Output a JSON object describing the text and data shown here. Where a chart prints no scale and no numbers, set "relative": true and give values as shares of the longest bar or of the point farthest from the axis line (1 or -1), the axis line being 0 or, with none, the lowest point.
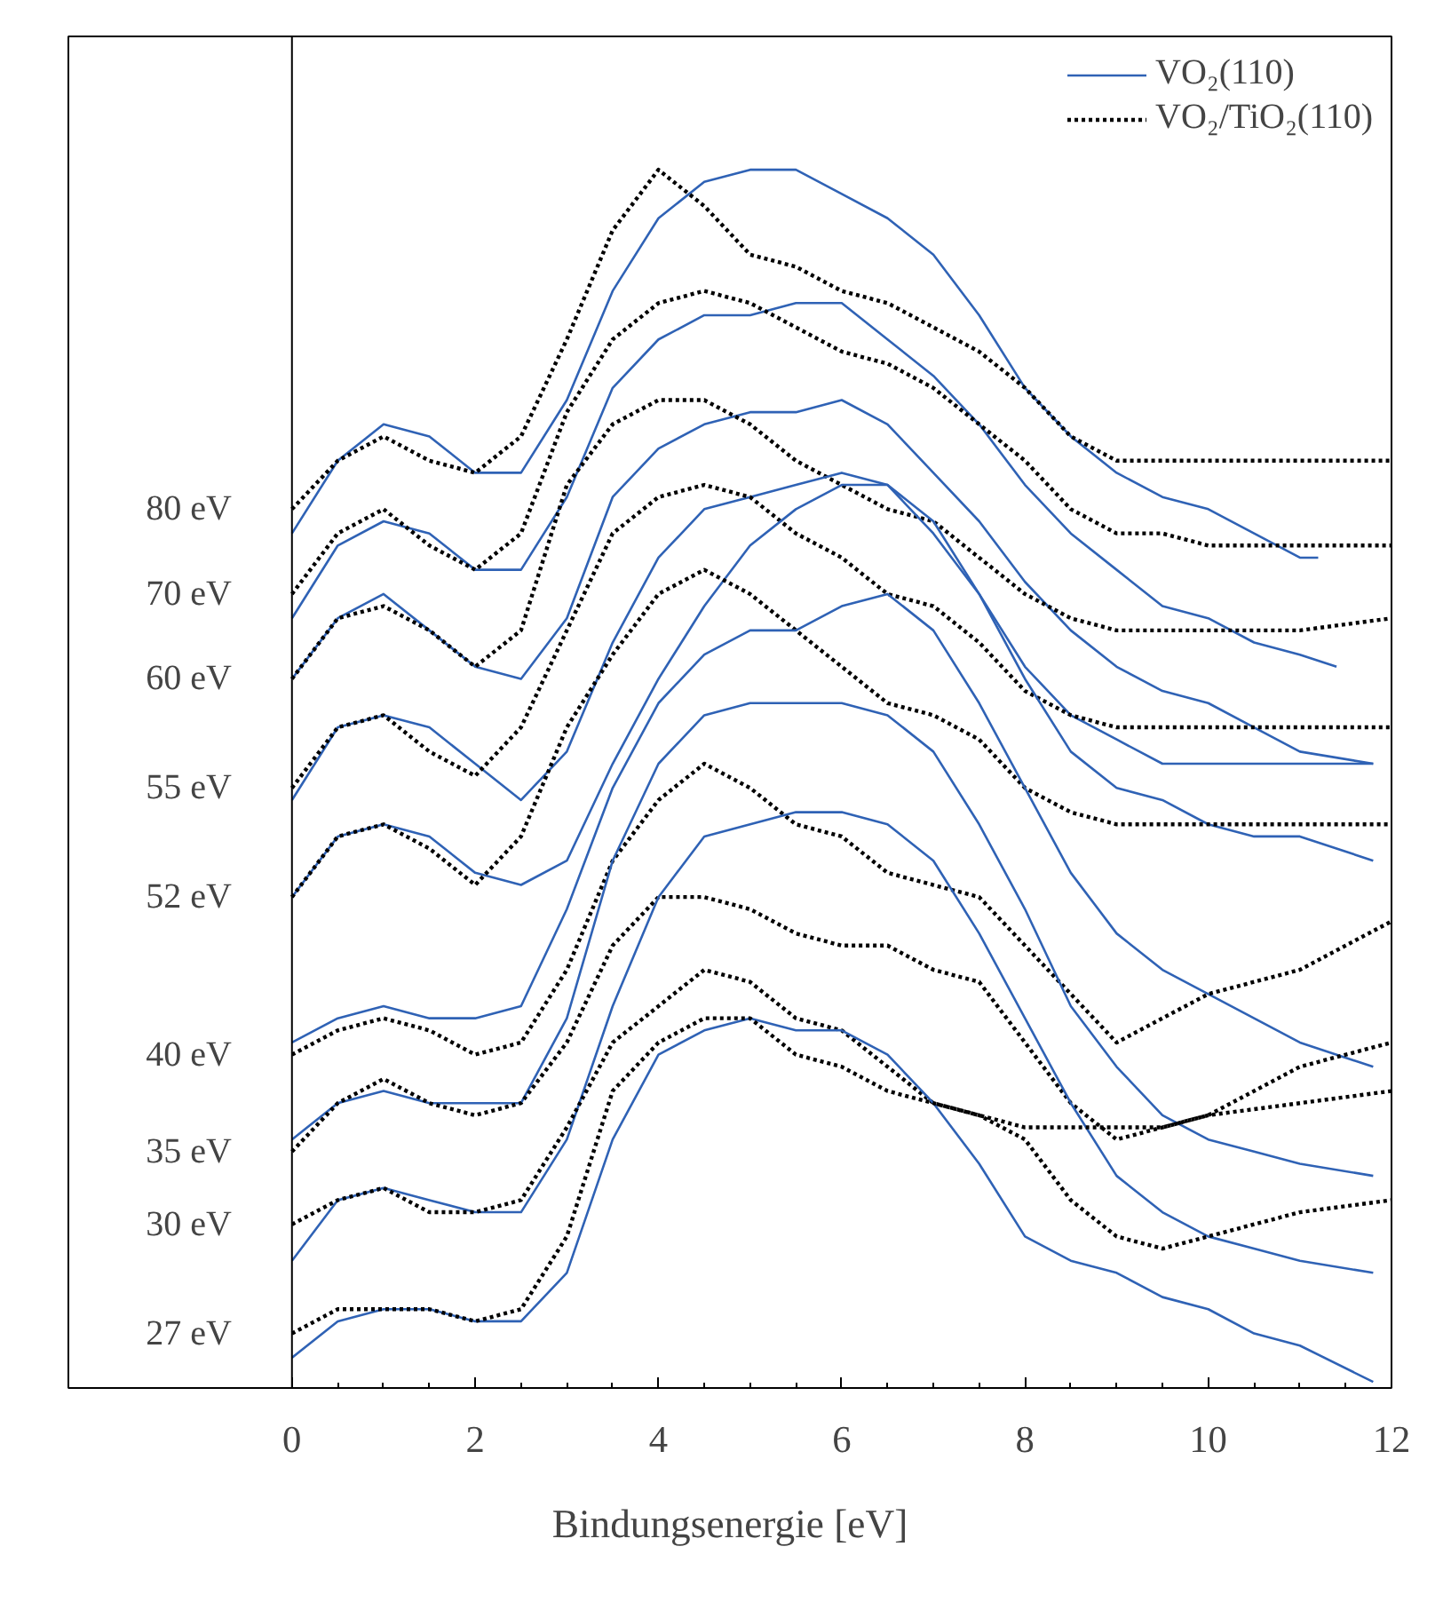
{
  "chart_data": {
    "type": "line",
    "relative": true,
    "xlabel": "Bindungsenergie [eV]",
    "xlim": [
      -2.44,
      12
    ],
    "xticks": [
      0,
      2,
      4,
      6,
      8,
      10,
      12
    ],
    "grid": false,
    "ref_lines": [
      {
        "axis": "x",
        "value": 0
      }
    ],
    "legend": "top right",
    "marker": "none",
    "annotations": [
      "80 eV",
      "70 eV",
      "60 eV",
      "55 eV",
      "52 eV",
      "40 eV",
      "35 eV",
      "30 eV",
      "27 eV"
    ],
    "series": [
      {
        "name": "VO₂(110)",
        "color": "#2f62b5",
        "line_style": "solid",
        "x": [
          0,
          0.5,
          1,
          1.5,
          2,
          2.5,
          3,
          3.5,
          4,
          4.5,
          5,
          5.5,
          6,
          6.5,
          7,
          7.5,
          8,
          8.5,
          9,
          9.5,
          10,
          10.5,
          11,
          11.2
        ],
        "values": [
          0.7,
          0.76,
          0.79,
          0.78,
          0.75,
          0.75,
          0.81,
          0.9,
          0.96,
          0.99,
          1.0,
          1.0,
          0.98,
          0.96,
          0.93,
          0.88,
          0.82,
          0.78,
          0.75,
          0.73,
          0.72,
          0.7,
          0.68,
          0.68
        ]
      },
      {
        "name": "VO₂/TiO₂(110)",
        "color": "#000000",
        "line_style": "dotted",
        "x": [
          0,
          0.5,
          1,
          1.5,
          2,
          2.5,
          3,
          3.5,
          4,
          4.5,
          5,
          5.5,
          6,
          6.5,
          7,
          7.5,
          8,
          8.5,
          9,
          9.5,
          10,
          11,
          12
        ],
        "values": [
          0.72,
          0.76,
          0.78,
          0.76,
          0.75,
          0.78,
          0.86,
          0.95,
          1.0,
          0.97,
          0.93,
          0.92,
          0.9,
          0.89,
          0.87,
          0.85,
          0.82,
          0.78,
          0.76,
          0.76,
          0.76,
          0.76,
          0.76
        ]
      },
      {
        "color": "#2f62b5",
        "line_style": "solid",
        "x": [
          0,
          0.5,
          1,
          1.5,
          2,
          2.5,
          3,
          3.5,
          4,
          4.5,
          5,
          5.5,
          6,
          6.5,
          7,
          7.5,
          8,
          8.5,
          9,
          9.5,
          10,
          10.5,
          11,
          11.4
        ],
        "values": [
          0.63,
          0.69,
          0.71,
          0.7,
          0.67,
          0.67,
          0.73,
          0.82,
          0.86,
          0.88,
          0.88,
          0.89,
          0.89,
          0.86,
          0.83,
          0.79,
          0.74,
          0.7,
          0.67,
          0.64,
          0.63,
          0.61,
          0.6,
          0.59
        ]
      },
      {
        "color": "#000000",
        "line_style": "dotted",
        "x": [
          0,
          0.5,
          1,
          1.5,
          2,
          2.5,
          3,
          3.5,
          4,
          4.5,
          5,
          5.5,
          6,
          6.5,
          7,
          7.5,
          8,
          8.5,
          9,
          9.5,
          10,
          11,
          12
        ],
        "values": [
          0.65,
          0.7,
          0.72,
          0.69,
          0.67,
          0.7,
          0.8,
          0.86,
          0.89,
          0.9,
          0.89,
          0.87,
          0.85,
          0.84,
          0.82,
          0.79,
          0.76,
          0.72,
          0.7,
          0.7,
          0.69,
          0.69,
          0.69
        ]
      },
      {
        "color": "#2f62b5",
        "line_style": "solid",
        "x": [
          0,
          0.5,
          1,
          1.5,
          2,
          2.5,
          3,
          3.5,
          4,
          4.5,
          5,
          5.5,
          6,
          6.5,
          7,
          7.5,
          8,
          8.5,
          9,
          9.5,
          10,
          10.5,
          11,
          11.8
        ],
        "values": [
          0.58,
          0.63,
          0.65,
          0.62,
          0.59,
          0.58,
          0.63,
          0.73,
          0.77,
          0.79,
          0.8,
          0.8,
          0.81,
          0.79,
          0.75,
          0.71,
          0.66,
          0.62,
          0.59,
          0.57,
          0.56,
          0.54,
          0.52,
          0.51
        ]
      },
      {
        "color": "#000000",
        "line_style": "dotted",
        "x": [
          0,
          0.5,
          1,
          1.5,
          2,
          2.5,
          3,
          3.5,
          4,
          4.5,
          5,
          5.5,
          6,
          6.5,
          7,
          7.5,
          8,
          8.5,
          9,
          9.5,
          10,
          11,
          12
        ],
        "values": [
          0.58,
          0.63,
          0.64,
          0.62,
          0.59,
          0.62,
          0.74,
          0.79,
          0.81,
          0.81,
          0.79,
          0.76,
          0.74,
          0.72,
          0.71,
          0.68,
          0.65,
          0.63,
          0.62,
          0.62,
          0.62,
          0.62,
          0.63
        ]
      },
      {
        "color": "#2f62b5",
        "line_style": "solid",
        "x": [
          0,
          0.5,
          1,
          1.5,
          2,
          2.5,
          3,
          3.5,
          4,
          4.5,
          5,
          5.5,
          6,
          6.5,
          7,
          7.5,
          8,
          8.5,
          9,
          9.5,
          10,
          10.5,
          11,
          11.8
        ],
        "values": [
          0.48,
          0.54,
          0.55,
          0.54,
          0.51,
          0.48,
          0.52,
          0.61,
          0.68,
          0.72,
          0.73,
          0.74,
          0.75,
          0.74,
          0.7,
          0.65,
          0.59,
          0.55,
          0.53,
          0.51,
          0.51,
          0.51,
          0.51,
          0.51
        ]
      },
      {
        "color": "#000000",
        "line_style": "dotted",
        "x": [
          0,
          0.5,
          1,
          1.5,
          2,
          2.5,
          3,
          3.5,
          4,
          4.5,
          5,
          5.5,
          6,
          6.5,
          7,
          7.5,
          8,
          8.5,
          9,
          9.5,
          10,
          11,
          12
        ],
        "values": [
          0.49,
          0.54,
          0.55,
          0.52,
          0.5,
          0.54,
          0.62,
          0.7,
          0.73,
          0.74,
          0.73,
          0.7,
          0.68,
          0.65,
          0.64,
          0.61,
          0.57,
          0.55,
          0.54,
          0.54,
          0.54,
          0.54,
          0.54
        ]
      },
      {
        "color": "#2f62b5",
        "line_style": "solid",
        "x": [
          0,
          0.5,
          1,
          1.5,
          2,
          2.5,
          3,
          3.5,
          4,
          4.5,
          5,
          5.5,
          6,
          6.5,
          7,
          7.5,
          8,
          8.5,
          9,
          9.5,
          10,
          10.5,
          11,
          11.8
        ],
        "values": [
          0.4,
          0.45,
          0.46,
          0.45,
          0.42,
          0.41,
          0.43,
          0.51,
          0.58,
          0.64,
          0.69,
          0.72,
          0.74,
          0.74,
          0.71,
          0.65,
          0.58,
          0.52,
          0.49,
          0.48,
          0.46,
          0.45,
          0.45,
          0.43
        ]
      },
      {
        "color": "#000000",
        "line_style": "dotted",
        "x": [
          0,
          0.5,
          1,
          1.5,
          2,
          2.5,
          3,
          3.5,
          4,
          4.5,
          5,
          5.5,
          6,
          6.5,
          7,
          7.5,
          8,
          8.5,
          9,
          9.5,
          10,
          11,
          12
        ],
        "values": [
          0.4,
          0.45,
          0.46,
          0.44,
          0.41,
          0.45,
          0.54,
          0.6,
          0.65,
          0.67,
          0.65,
          0.62,
          0.59,
          0.56,
          0.55,
          0.53,
          0.49,
          0.47,
          0.46,
          0.46,
          0.46,
          0.46,
          0.46
        ]
      },
      {
        "color": "#2f62b5",
        "line_style": "solid",
        "x": [
          0,
          0.5,
          1,
          1.5,
          2,
          2.5,
          3,
          3.5,
          4,
          4.5,
          5,
          5.5,
          6,
          6.5,
          7,
          7.5,
          8,
          8.5,
          9,
          9.5,
          10,
          10.5,
          11,
          11.8
        ],
        "values": [
          0.28,
          0.3,
          0.31,
          0.3,
          0.3,
          0.31,
          0.39,
          0.49,
          0.56,
          0.6,
          0.62,
          0.62,
          0.64,
          0.65,
          0.62,
          0.56,
          0.49,
          0.42,
          0.37,
          0.34,
          0.32,
          0.3,
          0.28,
          0.26
        ]
      },
      {
        "color": "#000000",
        "line_style": "dotted",
        "x": [
          0,
          0.5,
          1,
          1.5,
          2,
          2.5,
          3,
          3.5,
          4,
          4.5,
          5,
          5.5,
          6,
          6.5,
          7,
          7.5,
          8,
          8.5,
          9,
          9.5,
          10,
          11,
          12
        ],
        "values": [
          0.27,
          0.29,
          0.3,
          0.29,
          0.27,
          0.28,
          0.34,
          0.43,
          0.48,
          0.51,
          0.49,
          0.46,
          0.45,
          0.42,
          0.41,
          0.4,
          0.36,
          0.32,
          0.28,
          0.3,
          0.32,
          0.34,
          0.38
        ]
      },
      {
        "color": "#2f62b5",
        "line_style": "solid",
        "x": [
          0,
          0.5,
          1,
          1.5,
          2,
          2.5,
          3,
          3.5,
          4,
          4.5,
          5,
          5.5,
          6,
          6.5,
          7,
          7.5,
          8,
          8.5,
          9,
          9.5,
          10,
          10.5,
          11,
          11.8
        ],
        "values": [
          0.2,
          0.23,
          0.24,
          0.23,
          0.23,
          0.23,
          0.3,
          0.43,
          0.51,
          0.55,
          0.56,
          0.56,
          0.56,
          0.55,
          0.52,
          0.46,
          0.39,
          0.31,
          0.26,
          0.22,
          0.2,
          0.19,
          0.18,
          0.17
        ]
      },
      {
        "color": "#000000",
        "line_style": "dotted",
        "x": [
          0,
          0.5,
          1,
          1.5,
          2,
          2.5,
          3,
          3.5,
          4,
          4.5,
          5,
          5.5,
          6,
          6.5,
          7,
          7.5,
          8,
          8.5,
          9,
          9.5,
          10,
          11,
          12
        ],
        "values": [
          0.19,
          0.23,
          0.25,
          0.23,
          0.22,
          0.23,
          0.28,
          0.36,
          0.4,
          0.4,
          0.39,
          0.37,
          0.36,
          0.36,
          0.34,
          0.33,
          0.28,
          0.23,
          0.2,
          0.21,
          0.22,
          0.26,
          0.28
        ]
      },
      {
        "color": "#2f62b5",
        "line_style": "solid",
        "x": [
          0,
          0.5,
          1,
          1.5,
          2,
          2.5,
          3,
          3.5,
          4,
          4.5,
          5,
          5.5,
          6,
          6.5,
          7,
          7.5,
          8,
          8.5,
          9,
          9.5,
          10,
          10.5,
          11,
          11.8
        ],
        "values": [
          0.1,
          0.15,
          0.16,
          0.15,
          0.14,
          0.14,
          0.2,
          0.31,
          0.4,
          0.45,
          0.46,
          0.47,
          0.47,
          0.46,
          0.43,
          0.37,
          0.3,
          0.23,
          0.17,
          0.14,
          0.12,
          0.11,
          0.1,
          0.09
        ]
      },
      {
        "color": "#000000",
        "line_style": "dotted",
        "x": [
          0,
          0.5,
          1,
          1.5,
          2,
          2.5,
          3,
          3.5,
          4,
          4.5,
          5,
          5.5,
          6,
          6.5,
          7,
          7.5,
          8,
          8.5,
          9,
          9.5,
          10,
          11,
          12
        ],
        "values": [
          0.13,
          0.15,
          0.16,
          0.14,
          0.14,
          0.15,
          0.21,
          0.28,
          0.31,
          0.34,
          0.33,
          0.3,
          0.29,
          0.26,
          0.23,
          0.22,
          0.2,
          0.15,
          0.12,
          0.11,
          0.12,
          0.14,
          0.15
        ]
      },
      {
        "color": "#2f62b5",
        "line_style": "solid",
        "x": [
          0,
          0.5,
          1,
          1.5,
          2,
          2.5,
          3,
          3.5,
          4,
          4.5,
          5,
          5.5,
          6,
          6.5,
          7,
          7.5,
          8,
          8.5,
          9,
          9.5,
          10,
          10.5,
          11,
          11.8
        ],
        "values": [
          0.02,
          0.05,
          0.06,
          0.06,
          0.05,
          0.05,
          0.09,
          0.2,
          0.27,
          0.29,
          0.3,
          0.29,
          0.29,
          0.27,
          0.23,
          0.18,
          0.12,
          0.1,
          0.09,
          0.07,
          0.06,
          0.04,
          0.03,
          0.0
        ]
      },
      {
        "color": "#000000",
        "line_style": "dotted",
        "x": [
          0,
          0.5,
          1,
          1.5,
          2,
          2.5,
          3,
          3.5,
          4,
          4.5,
          5,
          5.5,
          6,
          6.5,
          7,
          7.5,
          8,
          8.5,
          9,
          9.5,
          10,
          11,
          12
        ],
        "values": [
          0.04,
          0.06,
          0.06,
          0.06,
          0.05,
          0.06,
          0.12,
          0.24,
          0.28,
          0.3,
          0.3,
          0.27,
          0.26,
          0.24,
          0.23,
          0.22,
          0.21,
          0.21,
          0.21,
          0.21,
          0.22,
          0.23,
          0.24
        ]
      }
    ]
  }
}
